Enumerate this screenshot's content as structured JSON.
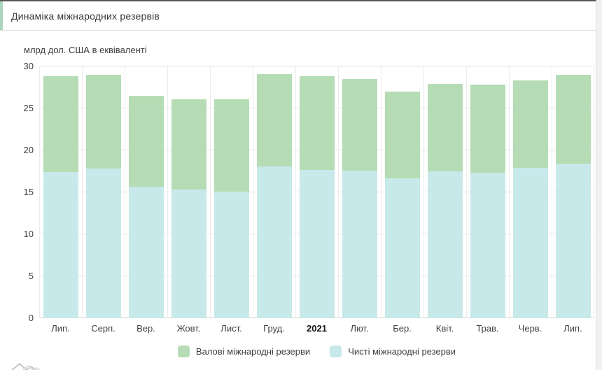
{
  "page": {
    "title": "Динаміка міжнародних резервів"
  },
  "chart": {
    "unit_label": "млрд дол. США в еквіваленті"
  },
  "chart_data": {
    "type": "bar",
    "subtype": "overlay",
    "title": "Динаміка міжнародних резервів",
    "subtitle": "млрд дол. США в еквіваленті",
    "categories": [
      "Лип.",
      "Серп.",
      "Вер.",
      "Жовт.",
      "Лист.",
      "Груд.",
      "2021",
      "Лют.",
      "Бер.",
      "Квіт.",
      "Трав.",
      "Черв.",
      "Лип."
    ],
    "bold_category_index": 6,
    "series": [
      {
        "name": "Валові міжнародні резерви",
        "color": "#b5dcb5",
        "values": [
          28.8,
          29.0,
          26.5,
          26.1,
          26.1,
          29.1,
          28.8,
          28.5,
          27.0,
          27.9,
          27.8,
          28.3,
          29.0
        ]
      },
      {
        "name": "Чисті міжнародні резерви",
        "color": "#c8e9ea",
        "values": [
          17.4,
          17.8,
          15.7,
          15.3,
          15.1,
          18.1,
          17.7,
          17.6,
          16.7,
          17.5,
          17.3,
          17.9,
          18.4
        ]
      }
    ],
    "ylim": [
      0,
      30
    ],
    "yticks": [
      0,
      5,
      10,
      15,
      20,
      25,
      30
    ],
    "grid": true,
    "legend_position": "bottom"
  },
  "colors": {
    "accent": "#abd6bb",
    "gross_bar": "#b5dcb5",
    "net_bar": "#c8e9ea",
    "grid": "#e4e4e4",
    "axis": "#cfcfcf",
    "watermark": "#cccccc"
  }
}
